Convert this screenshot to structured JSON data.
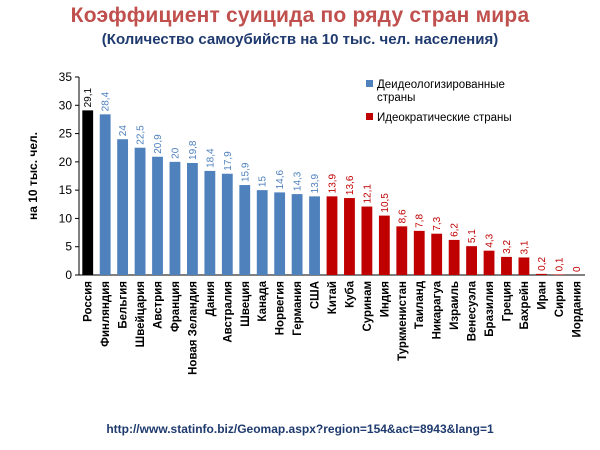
{
  "header": {
    "title": "Коэффициент суицида по ряду стран мира",
    "subtitle": "(Количество самоубийств на 10 тыс. чел. населения)"
  },
  "footer": {
    "source": "http://www.statinfo.biz/Geomap.aspx?region=154&act=8943&lang=1"
  },
  "chart_data": {
    "type": "bar",
    "ylabel": "на 10 тыс. чел.",
    "ylim": [
      0,
      35
    ],
    "yticks": [
      0,
      5,
      10,
      15,
      20,
      25,
      30,
      35
    ],
    "grid": false,
    "legend_position": "top-right",
    "categories": [
      "Россия",
      "Финляндия",
      "Бельгия",
      "Швейцария",
      "Австрия",
      "Франция",
      "Новая Зеландия",
      "Дания",
      "Австралия",
      "Швеция",
      "Канада",
      "Норвегия",
      "Германия",
      "США",
      "Китай",
      "Куба",
      "Суринам",
      "Индия",
      "Туркменистан",
      "Таиланд",
      "Никарагуа",
      "Израиль",
      "Венесуэла",
      "Бразилия",
      "Греция",
      "Бахрейн",
      "Иран",
      "Сирия",
      "Иордания"
    ],
    "value_labels": [
      "29,1",
      "28,4",
      "24",
      "22,5",
      "20,9",
      "20",
      "19,8",
      "18,4",
      "17,9",
      "15,9",
      "15",
      "14,6",
      "14,3",
      "13,9",
      "13,9",
      "13,6",
      "12,1",
      "10,5",
      "8,6",
      "7,8",
      "7,3",
      "6,2",
      "5,1",
      "4,3",
      "3,2",
      "3,1",
      "0,2",
      "0,1",
      "0"
    ],
    "values": [
      29.1,
      28.4,
      24,
      22.5,
      20.9,
      20,
      19.8,
      18.4,
      17.9,
      15.9,
      15,
      14.6,
      14.3,
      13.9,
      13.9,
      13.6,
      12.1,
      10.5,
      8.6,
      7.8,
      7.3,
      6.2,
      5.1,
      4.3,
      3.2,
      3.1,
      0.2,
      0.1,
      0
    ],
    "groups": [
      "highlight",
      "deideo",
      "deideo",
      "deideo",
      "deideo",
      "deideo",
      "deideo",
      "deideo",
      "deideo",
      "deideo",
      "deideo",
      "deideo",
      "deideo",
      "deideo",
      "ideo",
      "ideo",
      "ideo",
      "ideo",
      "ideo",
      "ideo",
      "ideo",
      "ideo",
      "ideo",
      "ideo",
      "ideo",
      "ideo",
      "ideo",
      "ideo",
      "ideo"
    ],
    "colors": {
      "highlight": "#000000",
      "deideo": "#4f81bd",
      "ideo": "#c00000"
    },
    "series": [
      {
        "name": "Деидеологизированные страны",
        "group": "deideo"
      },
      {
        "name": "Идеократические страны",
        "group": "ideo"
      }
    ]
  }
}
